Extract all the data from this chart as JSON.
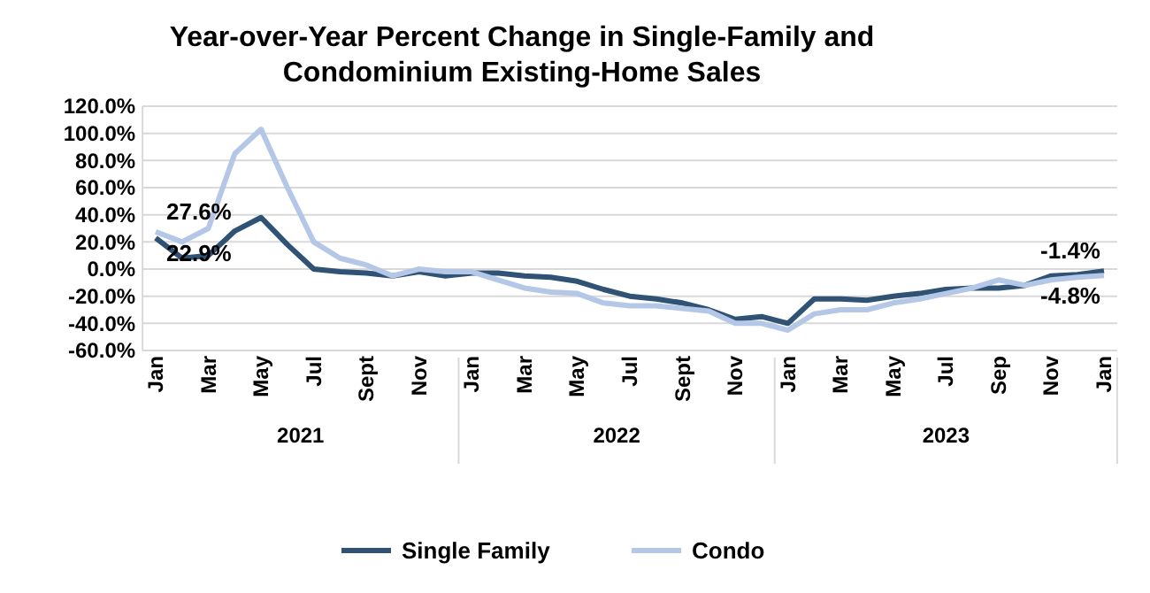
{
  "chart_data": {
    "type": "line",
    "title": "Year-over-Year Percent Change in Single-Family and Condominium Existing-Home Sales",
    "categories": [
      "Jan",
      null,
      "Mar",
      null,
      "May",
      null,
      "Jul",
      null,
      "Sept",
      null,
      "Nov",
      null,
      "Jan",
      null,
      "Mar",
      null,
      "May",
      null,
      "Jul",
      null,
      "Sept",
      null,
      "Nov",
      null,
      "Jan",
      null,
      "Mar",
      null,
      "May",
      null,
      "Jul",
      null,
      "Sep",
      null,
      "Nov",
      null,
      "Jan"
    ],
    "annotations": [
      "2021",
      "2022",
      "2023"
    ],
    "series": [
      {
        "name": "Single Family",
        "color": "#2f5275",
        "values": [
          22.9,
          8,
          10,
          28,
          38,
          18,
          0,
          -2,
          -3,
          -5,
          -2,
          -5,
          -3,
          -3,
          -5,
          -6,
          -9,
          -15,
          -20,
          -22,
          -25,
          -30,
          -37,
          -35,
          -40,
          -22,
          -22,
          -23,
          -20,
          -18,
          -15,
          -14,
          -14,
          -12,
          -5,
          -4,
          -1.4
        ],
        "value_labels": [
          "22.9%",
          null,
          null,
          null,
          null,
          null,
          null,
          null,
          null,
          null,
          null,
          null,
          null,
          null,
          null,
          null,
          null,
          null,
          null,
          null,
          null,
          null,
          null,
          null,
          null,
          null,
          null,
          null,
          null,
          null,
          null,
          null,
          null,
          null,
          null,
          null,
          "-1.4%"
        ]
      },
      {
        "name": "Condo",
        "color": "#b4c7e7",
        "values": [
          27.6,
          20,
          30,
          85,
          103,
          60,
          20,
          8,
          3,
          -5,
          0,
          -2,
          -2,
          -8,
          -14,
          -17,
          -18,
          -25,
          -27,
          -27,
          -29,
          -31,
          -40,
          -40,
          -45,
          -33,
          -30,
          -30,
          -25,
          -22,
          -18,
          -14,
          -8,
          -12,
          -8,
          -6,
          -4.8
        ],
        "value_labels": [
          "27.6%",
          null,
          null,
          null,
          null,
          null,
          null,
          null,
          null,
          null,
          null,
          null,
          null,
          null,
          null,
          null,
          null,
          null,
          null,
          null,
          null,
          null,
          null,
          null,
          null,
          null,
          null,
          null,
          null,
          null,
          null,
          null,
          null,
          null,
          null,
          null,
          "-4.8%"
        ]
      }
    ],
    "ylim": [
      -60,
      120
    ],
    "yticks": [
      {
        "value": -60,
        "label": "-60.0%"
      },
      {
        "value": -40,
        "label": "-40.0%"
      },
      {
        "value": -20,
        "label": "-20.0%"
      },
      {
        "value": 0,
        "label": "0.0%"
      },
      {
        "value": 20,
        "label": "20.0%"
      },
      {
        "value": 40,
        "label": "40.0%"
      },
      {
        "value": 60,
        "label": "60.0%"
      },
      {
        "value": 80,
        "label": "80.0%"
      },
      {
        "value": 100,
        "label": "100.0%"
      },
      {
        "value": 120,
        "label": "120.0%"
      }
    ],
    "grid": "y",
    "legend": "bottom",
    "marker": "none",
    "line_style": "solid"
  }
}
